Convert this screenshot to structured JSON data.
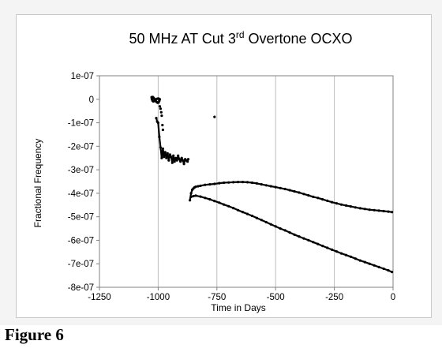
{
  "figure": {
    "caption": "Figure 6"
  },
  "chart_data": {
    "type": "scatter",
    "title": "50 MHz AT Cut 3rd Overtone OCXO",
    "title_parts": [
      "50 MHz AT Cut 3",
      "rd",
      " Overtone OCXO"
    ],
    "xlabel": "Time in Days",
    "ylabel": "Fractional Frequency",
    "xlim": [
      -1250,
      0
    ],
    "ylim": [
      -8e-07,
      1e-07
    ],
    "x_ticks": [
      -1250,
      -1000,
      -750,
      -500,
      -250,
      0
    ],
    "x_tick_labels": [
      "-1250",
      "-1000",
      "-750",
      "-500",
      "-250",
      "0"
    ],
    "y_ticks": [
      1e-07,
      0,
      -1e-07,
      -2e-07,
      -3e-07,
      -4e-07,
      -5e-07,
      -6e-07,
      -7e-07,
      -8e-07
    ],
    "y_tick_labels": [
      "1e-07",
      "0",
      "-1e-07",
      "-2e-07",
      "-3e-07",
      "-4e-07",
      "-5e-07",
      "-6e-07",
      "-7e-07",
      "-8e-07"
    ],
    "grid": "vertical",
    "legend": "none",
    "colors": {
      "data": "#000000",
      "grid": "#bdbdbd",
      "axis": "#808080"
    },
    "series": [
      {
        "x": [
          -1028,
          -1025,
          -1022,
          -1018,
          -1014,
          -1010,
          -1006,
          -1002,
          -998,
          -995,
          -993,
          -996,
          -1000,
          -1005,
          -1010,
          -1015,
          -1020,
          -1024,
          -1027,
          -1028
        ],
        "y": [
          8e-09,
          1e-08,
          9e-09,
          4e-09,
          -2e-09,
          -8e-09,
          -1.2e-08,
          -1.5e-08,
          -1.4e-08,
          -6e-09,
          0.0,
          2e-09,
          3e-09,
          2e-09,
          0.0,
          -5e-09,
          -9e-09,
          -6e-09,
          0.0,
          8e-09
        ]
      },
      {
        "x": [
          -1008,
          -1004,
          -1000,
          -995,
          -990,
          -985,
          -980,
          -975,
          -970,
          -965,
          -960,
          -955,
          -950,
          -945,
          -940,
          -935,
          -930,
          -925,
          -920,
          -915,
          -910,
          -905,
          -900,
          -895,
          -890,
          -885,
          -880,
          -875,
          -872
        ],
        "y": [
          -8e-08,
          -9.5e-08,
          -1e-07,
          -1.6e-07,
          -2.05e-07,
          -2.5e-07,
          -2.1e-07,
          -2.45e-07,
          -2.25e-07,
          -2.5e-07,
          -2.3e-07,
          -2.6e-07,
          -2.35e-07,
          -2.45e-07,
          -2.7e-07,
          -2.4e-07,
          -2.65e-07,
          -2.5e-07,
          -2.6e-07,
          -2.4e-07,
          -2.55e-07,
          -2.65e-07,
          -2.5e-07,
          -2.6e-07,
          -2.75e-07,
          -2.55e-07,
          -2.6e-07,
          -2.65e-07,
          -2.55e-07
        ]
      },
      {
        "x": [
          -865,
          -860,
          -855,
          -850,
          -845,
          -840,
          -830,
          -820,
          -800,
          -780,
          -760,
          -740,
          -720,
          -700,
          -680,
          -660,
          -640,
          -620,
          -600,
          -580,
          -560,
          -540,
          -520,
          -500,
          -480,
          -460,
          -440,
          -420,
          -400,
          -380,
          -360,
          -340,
          -320,
          -300,
          -280,
          -260,
          -240,
          -220,
          -200,
          -180,
          -160,
          -140,
          -120,
          -100,
          -80,
          -60,
          -40,
          -20,
          -5
        ],
        "y": [
          -4.3e-07,
          -4e-07,
          -3.85e-07,
          -3.8e-07,
          -3.75e-07,
          -3.72e-07,
          -3.7e-07,
          -3.68e-07,
          -3.64e-07,
          -3.62e-07,
          -3.6e-07,
          -3.57e-07,
          -3.55e-07,
          -3.54e-07,
          -3.53e-07,
          -3.52e-07,
          -3.52e-07,
          -3.53e-07,
          -3.55e-07,
          -3.58e-07,
          -3.62e-07,
          -3.66e-07,
          -3.7e-07,
          -3.74e-07,
          -3.78e-07,
          -3.82e-07,
          -3.87e-07,
          -3.92e-07,
          -3.97e-07,
          -4.03e-07,
          -4.09e-07,
          -4.15e-07,
          -4.2e-07,
          -4.26e-07,
          -4.32e-07,
          -4.38e-07,
          -4.43e-07,
          -4.48e-07,
          -4.52e-07,
          -4.56e-07,
          -4.6e-07,
          -4.64e-07,
          -4.67e-07,
          -4.7e-07,
          -4.72e-07,
          -4.74e-07,
          -4.76e-07,
          -4.78e-07,
          -4.8e-07
        ]
      },
      {
        "x": [
          -860,
          -850,
          -840,
          -820,
          -800,
          -780,
          -760,
          -740,
          -720,
          -700,
          -680,
          -660,
          -640,
          -620,
          -600,
          -580,
          -560,
          -540,
          -520,
          -500,
          -480,
          -460,
          -440,
          -420,
          -400,
          -380,
          -360,
          -340,
          -320,
          -300,
          -280,
          -260,
          -240,
          -220,
          -200,
          -180,
          -160,
          -140,
          -120,
          -100,
          -80,
          -60,
          -40,
          -20,
          -5
        ],
        "y": [
          -4.15e-07,
          -4.12e-07,
          -4.1e-07,
          -4.14e-07,
          -4.2e-07,
          -4.26e-07,
          -4.33e-07,
          -4.4e-07,
          -4.48e-07,
          -4.55e-07,
          -4.63e-07,
          -4.72e-07,
          -4.8e-07,
          -4.88e-07,
          -4.96e-07,
          -5.05e-07,
          -5.14e-07,
          -5.23e-07,
          -5.32e-07,
          -5.41e-07,
          -5.5e-07,
          -5.58e-07,
          -5.67e-07,
          -5.76e-07,
          -5.84e-07,
          -5.92e-07,
          -6e-07,
          -6.08e-07,
          -6.16e-07,
          -6.24e-07,
          -6.32e-07,
          -6.4e-07,
          -6.48e-07,
          -6.56e-07,
          -6.63e-07,
          -6.7e-07,
          -6.78e-07,
          -6.86e-07,
          -6.93e-07,
          -7e-07,
          -7.07e-07,
          -7.14e-07,
          -7.21e-07,
          -7.28e-07,
          -7.35e-07
        ]
      },
      {
        "x": [
          -993,
          -990,
          -987,
          -985,
          -982,
          -980,
          -760
        ],
        "y": [
          -3e-08,
          -4e-08,
          -5.5e-08,
          -7e-08,
          -1.1e-07,
          -1.3e-07,
          -7.5e-08
        ]
      }
    ]
  }
}
